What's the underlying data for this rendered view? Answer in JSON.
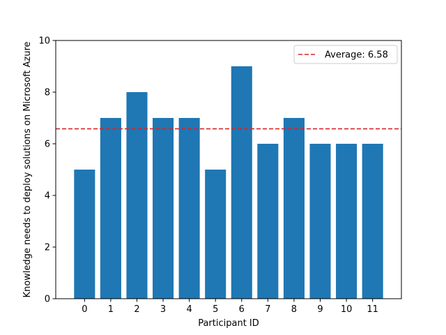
{
  "chart_data": {
    "type": "bar",
    "title": "",
    "xlabel": "Participant ID",
    "ylabel": "Knowledge needs to deploy solutions on Microsoft Azure",
    "categories": [
      "0",
      "1",
      "2",
      "3",
      "4",
      "5",
      "6",
      "7",
      "8",
      "9",
      "10",
      "11"
    ],
    "values": [
      5,
      7,
      8,
      7,
      7,
      5,
      9,
      6,
      7,
      6,
      6,
      6
    ],
    "ylim": [
      0,
      10
    ],
    "yticks": [
      "0",
      "2",
      "4",
      "6",
      "8",
      "10"
    ],
    "grid": false,
    "bar_color": "#1f77b4",
    "reference_line": {
      "label": "Average: 6.58",
      "value": 6.58,
      "color": "#d62728",
      "style": "dashed"
    },
    "legend": {
      "placement": "top-right",
      "entries": [
        "Average: 6.58"
      ]
    }
  }
}
